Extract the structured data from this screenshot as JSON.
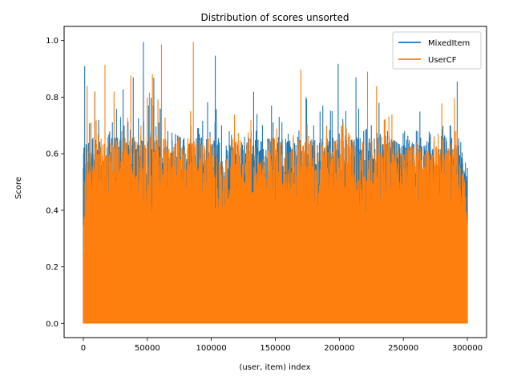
{
  "chart_data": {
    "type": "line",
    "title": "Distribution of scores unsorted",
    "xlabel": "(user, item) index",
    "ylabel": "Score",
    "xlim": [
      -15000,
      315000
    ],
    "ylim": [
      -0.05,
      1.05
    ],
    "x_ticks": [
      0,
      50000,
      100000,
      150000,
      200000,
      250000,
      300000
    ],
    "x_tick_labels": [
      "0",
      "50000",
      "100000",
      "150000",
      "200000",
      "250000",
      "300000"
    ],
    "y_ticks": [
      0.0,
      0.2,
      0.4,
      0.6,
      0.8,
      1.0
    ],
    "y_tick_labels": [
      "0.0",
      "0.2",
      "0.4",
      "0.6",
      "0.8",
      "1.0"
    ],
    "grid": false,
    "legend_position": "top-right",
    "n_points": 300000,
    "series": [
      {
        "name": "MixedItem",
        "color": "#1f77b4",
        "envelope_peaks": [
          {
            "x": 0,
            "y": 0.55
          },
          {
            "x": 1000,
            "y": 0.92
          },
          {
            "x": 3000,
            "y": 0.63
          },
          {
            "x": 5000,
            "y": 0.71
          },
          {
            "x": 9000,
            "y": 0.82
          },
          {
            "x": 12000,
            "y": 0.72
          },
          {
            "x": 15000,
            "y": 0.55
          },
          {
            "x": 20000,
            "y": 0.67
          },
          {
            "x": 26000,
            "y": 0.76
          },
          {
            "x": 31000,
            "y": 0.83
          },
          {
            "x": 35000,
            "y": 0.71
          },
          {
            "x": 39000,
            "y": 0.87
          },
          {
            "x": 43000,
            "y": 0.72
          },
          {
            "x": 47000,
            "y": 1.0
          },
          {
            "x": 51000,
            "y": 0.77
          },
          {
            "x": 55000,
            "y": 0.87
          },
          {
            "x": 60000,
            "y": 0.76
          },
          {
            "x": 66000,
            "y": 0.68
          },
          {
            "x": 72000,
            "y": 0.67
          },
          {
            "x": 78000,
            "y": 0.65
          },
          {
            "x": 84000,
            "y": 0.7
          },
          {
            "x": 90000,
            "y": 0.69
          },
          {
            "x": 97000,
            "y": 0.78
          },
          {
            "x": 103000,
            "y": 0.95
          },
          {
            "x": 108000,
            "y": 0.7
          },
          {
            "x": 114000,
            "y": 0.68
          },
          {
            "x": 120000,
            "y": 0.63
          },
          {
            "x": 126000,
            "y": 0.66
          },
          {
            "x": 133000,
            "y": 0.82
          },
          {
            "x": 140000,
            "y": 0.7
          },
          {
            "x": 147000,
            "y": 0.77
          },
          {
            "x": 153000,
            "y": 0.73
          },
          {
            "x": 160000,
            "y": 0.67
          },
          {
            "x": 166000,
            "y": 0.63
          },
          {
            "x": 174000,
            "y": 0.8
          },
          {
            "x": 180000,
            "y": 0.7
          },
          {
            "x": 187000,
            "y": 0.77
          },
          {
            "x": 193000,
            "y": 0.75
          },
          {
            "x": 199000,
            "y": 0.92
          },
          {
            "x": 205000,
            "y": 0.75
          },
          {
            "x": 213000,
            "y": 0.87
          },
          {
            "x": 219000,
            "y": 0.68
          },
          {
            "x": 225000,
            "y": 0.7
          },
          {
            "x": 231000,
            "y": 0.78
          },
          {
            "x": 239000,
            "y": 0.66
          },
          {
            "x": 245000,
            "y": 0.64
          },
          {
            "x": 251000,
            "y": 0.68
          },
          {
            "x": 257000,
            "y": 0.64
          },
          {
            "x": 263000,
            "y": 0.75
          },
          {
            "x": 271000,
            "y": 0.67
          },
          {
            "x": 277000,
            "y": 0.59
          },
          {
            "x": 281000,
            "y": 0.7
          },
          {
            "x": 287000,
            "y": 0.7
          },
          {
            "x": 292000,
            "y": 0.86
          },
          {
            "x": 296000,
            "y": 0.6
          },
          {
            "x": 300000,
            "y": 0.55
          }
        ]
      },
      {
        "name": "UserCF",
        "color": "#ff7f0e",
        "envelope_peaks": [
          {
            "x": 0,
            "y": 0.25
          },
          {
            "x": 3000,
            "y": 0.84
          },
          {
            "x": 6000,
            "y": 0.71
          },
          {
            "x": 9000,
            "y": 0.82
          },
          {
            "x": 14000,
            "y": 0.65
          },
          {
            "x": 17000,
            "y": 0.92
          },
          {
            "x": 22000,
            "y": 0.6
          },
          {
            "x": 24000,
            "y": 0.82
          },
          {
            "x": 30000,
            "y": 0.68
          },
          {
            "x": 37000,
            "y": 0.88
          },
          {
            "x": 42000,
            "y": 0.64
          },
          {
            "x": 50000,
            "y": 0.8
          },
          {
            "x": 54000,
            "y": 0.88
          },
          {
            "x": 61000,
            "y": 0.99
          },
          {
            "x": 68000,
            "y": 0.6
          },
          {
            "x": 75000,
            "y": 0.66
          },
          {
            "x": 80000,
            "y": 0.6
          },
          {
            "x": 86000,
            "y": 1.0
          },
          {
            "x": 92000,
            "y": 0.63
          },
          {
            "x": 99000,
            "y": 0.66
          },
          {
            "x": 106000,
            "y": 0.57
          },
          {
            "x": 112000,
            "y": 0.58
          },
          {
            "x": 118000,
            "y": 0.74
          },
          {
            "x": 125000,
            "y": 0.6
          },
          {
            "x": 131000,
            "y": 0.72
          },
          {
            "x": 138000,
            "y": 0.56
          },
          {
            "x": 144000,
            "y": 0.64
          },
          {
            "x": 151000,
            "y": 0.69
          },
          {
            "x": 157000,
            "y": 0.58
          },
          {
            "x": 164000,
            "y": 0.66
          },
          {
            "x": 170000,
            "y": 0.9
          },
          {
            "x": 176000,
            "y": 0.66
          },
          {
            "x": 183000,
            "y": 0.62
          },
          {
            "x": 190000,
            "y": 0.7
          },
          {
            "x": 196000,
            "y": 0.64
          },
          {
            "x": 203000,
            "y": 0.71
          },
          {
            "x": 210000,
            "y": 0.65
          },
          {
            "x": 216000,
            "y": 0.6
          },
          {
            "x": 222000,
            "y": 0.89
          },
          {
            "x": 229000,
            "y": 0.84
          },
          {
            "x": 235000,
            "y": 0.72
          },
          {
            "x": 241000,
            "y": 0.74
          },
          {
            "x": 248000,
            "y": 0.6
          },
          {
            "x": 254000,
            "y": 0.62
          },
          {
            "x": 260000,
            "y": 0.64
          },
          {
            "x": 267000,
            "y": 0.6
          },
          {
            "x": 274000,
            "y": 0.66
          },
          {
            "x": 280000,
            "y": 0.78
          },
          {
            "x": 285000,
            "y": 0.62
          },
          {
            "x": 290000,
            "y": 0.8
          },
          {
            "x": 294000,
            "y": 0.56
          },
          {
            "x": 298000,
            "y": 0.5
          },
          {
            "x": 300000,
            "y": 0.35
          }
        ]
      }
    ]
  }
}
